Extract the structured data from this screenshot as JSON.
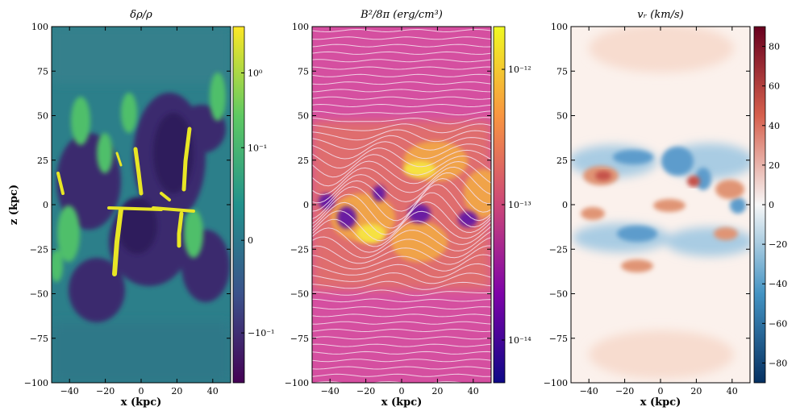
{
  "chart_data": [
    {
      "type": "heatmap",
      "title": "δρ/ρ",
      "xlabel": "x (kpc)",
      "ylabel": "z (kpc)",
      "xlim": [
        -50,
        50
      ],
      "ylim": [
        -100,
        100
      ],
      "x_ticks": [
        "−40",
        "−20",
        "0",
        "20",
        "40"
      ],
      "y_ticks": [
        "100",
        "75",
        "50",
        "25",
        "0",
        "−25",
        "−50",
        "−75",
        "−100"
      ],
      "colormap": "viridis",
      "colorbar": {
        "scale": "symlog",
        "ticks": [
          {
            "label": "10⁰",
            "pos": 0.87
          },
          {
            "label": "10⁻¹",
            "pos": 0.66
          },
          {
            "label": "0",
            "pos": 0.4
          },
          {
            "label": "−10⁻¹",
            "pos": 0.14
          }
        ]
      },
      "colors": [
        "#440154",
        "#3b528b",
        "#21918c",
        "#5ec962",
        "#fde725"
      ]
    },
    {
      "type": "heatmap",
      "title": "B²/8π (erg/cm³)",
      "xlabel": "x (kpc)",
      "ylabel": "",
      "xlim": [
        -50,
        50
      ],
      "ylim": [
        -100,
        100
      ],
      "x_ticks": [
        "−40",
        "−20",
        "0",
        "20",
        "40"
      ],
      "y_ticks": [
        "100",
        "75",
        "50",
        "25",
        "0",
        "−25",
        "−50",
        "−75",
        "−100"
      ],
      "colormap": "plasma",
      "field_lines": true,
      "colorbar": {
        "scale": "log",
        "ticks": [
          {
            "label": "10⁻¹²",
            "pos": 0.88
          },
          {
            "label": "10⁻¹³",
            "pos": 0.5
          },
          {
            "label": "10⁻¹⁴",
            "pos": 0.12
          }
        ]
      },
      "colors": [
        "#0d0887",
        "#7e03a8",
        "#cc4778",
        "#f89540",
        "#f0f921"
      ]
    },
    {
      "type": "heatmap",
      "title": "vᵣ (km/s)",
      "xlabel": "x (kpc)",
      "ylabel": "",
      "xlim": [
        -50,
        50
      ],
      "ylim": [
        -100,
        100
      ],
      "x_ticks": [
        "−40",
        "−20",
        "0",
        "20",
        "40"
      ],
      "y_ticks": [
        "100",
        "75",
        "50",
        "25",
        "0",
        "−25",
        "−50",
        "−75",
        "−100"
      ],
      "colormap": "RdBu_r",
      "colorbar": {
        "scale": "linear",
        "range": [
          -90,
          90
        ],
        "ticks": [
          {
            "label": "80",
            "value": 80
          },
          {
            "label": "60",
            "value": 60
          },
          {
            "label": "40",
            "value": 40
          },
          {
            "label": "20",
            "value": 20
          },
          {
            "label": "0",
            "value": 0
          },
          {
            "label": "−20",
            "value": -20
          },
          {
            "label": "−40",
            "value": -40
          },
          {
            "label": "−60",
            "value": -60
          },
          {
            "label": "−80",
            "value": -80
          }
        ]
      },
      "colors": [
        "#053061",
        "#4393c3",
        "#f7f7f7",
        "#d6604d",
        "#67001f"
      ]
    }
  ]
}
